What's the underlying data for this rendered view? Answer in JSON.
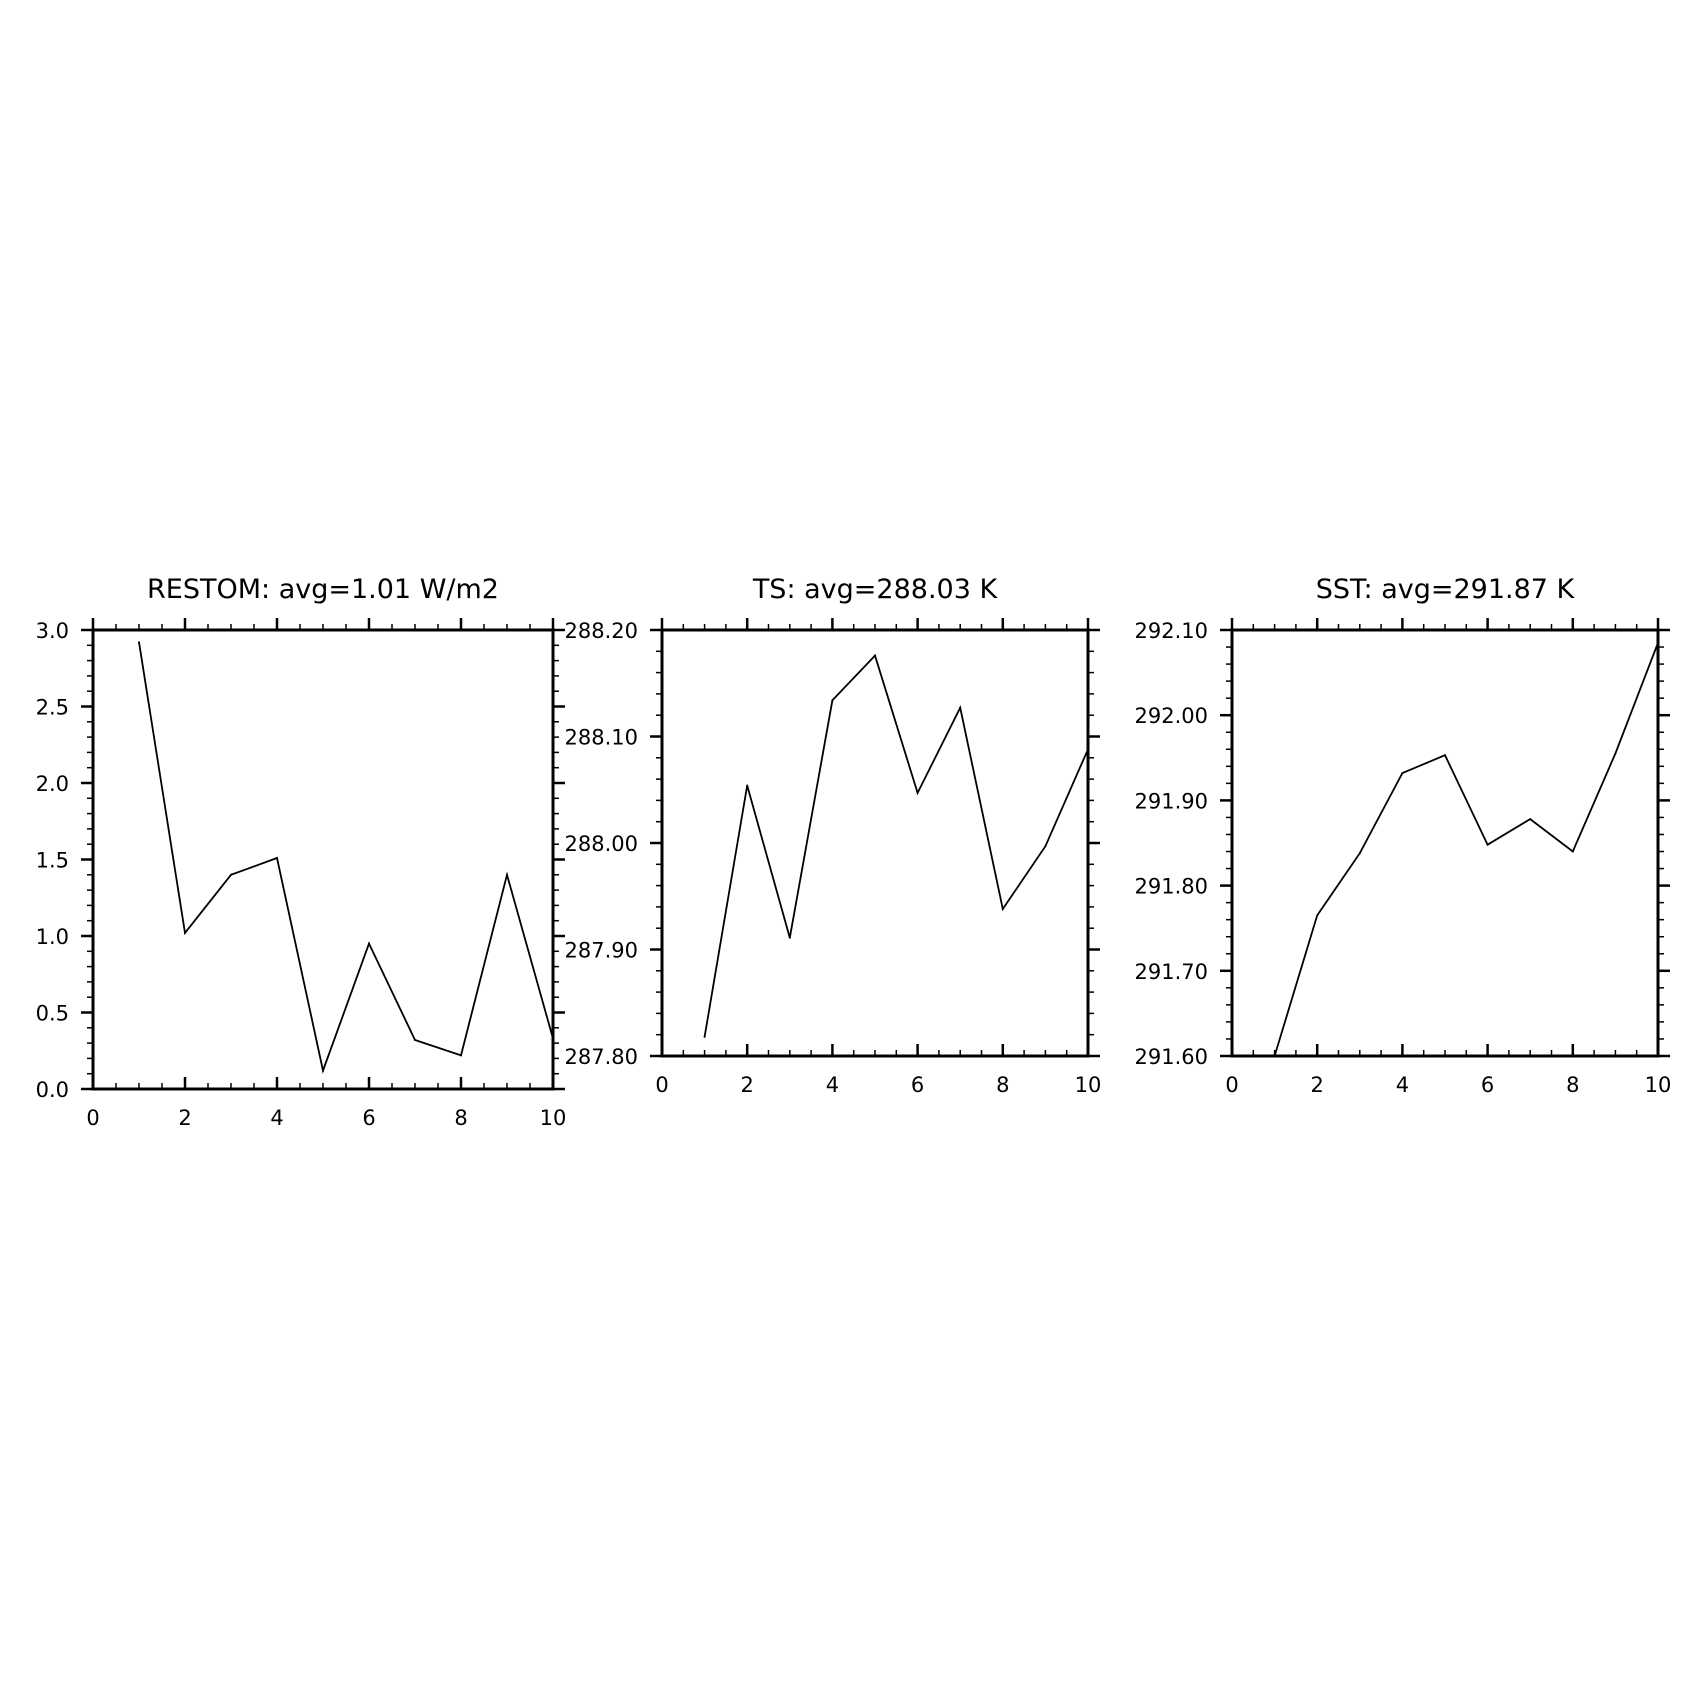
{
  "chart_data": [
    {
      "type": "line",
      "title": "RESTOM: avg=1.01 W/m2",
      "x": [
        1,
        2,
        3,
        4,
        5,
        6,
        7,
        8,
        9,
        10
      ],
      "values": [
        2.92,
        1.02,
        1.4,
        1.51,
        0.12,
        0.95,
        0.32,
        0.22,
        1.4,
        0.33
      ],
      "xlim": [
        0,
        10
      ],
      "ylim": [
        0,
        3
      ],
      "xticks": [
        0,
        2,
        4,
        6,
        8,
        10
      ],
      "yticks": [
        0.0,
        0.5,
        1.0,
        1.5,
        2.0,
        2.5,
        3.0
      ],
      "xtick_labels": [
        "0",
        "2",
        "4",
        "6",
        "8",
        "10"
      ],
      "ytick_labels": [
        "0.0",
        "0.5",
        "1.0",
        "1.5",
        "2.0",
        "2.5",
        "3.0"
      ],
      "grid": false
    },
    {
      "type": "line",
      "title": "TS: avg=288.03 K",
      "x": [
        1,
        2,
        3,
        4,
        5,
        6,
        7,
        8,
        9,
        10
      ],
      "values": [
        287.818,
        288.054,
        287.911,
        288.134,
        288.176,
        288.047,
        288.127,
        287.938,
        287.997,
        288.088
      ],
      "xlim": [
        0,
        10
      ],
      "ylim": [
        287.8,
        288.2
      ],
      "xticks": [
        0,
        2,
        4,
        6,
        8,
        10
      ],
      "yticks": [
        287.8,
        287.9,
        288.0,
        288.1,
        288.2
      ],
      "xtick_labels": [
        "0",
        "2",
        "4",
        "6",
        "8",
        "10"
      ],
      "ytick_labels": [
        "287.80",
        "287.90",
        "288.00",
        "288.10",
        "288.20"
      ],
      "grid": false
    },
    {
      "type": "line",
      "title": "SST: avg=291.87 K",
      "x": [
        1,
        2,
        3,
        4,
        5,
        6,
        7,
        8,
        9,
        10
      ],
      "values": [
        291.6,
        291.765,
        291.838,
        291.932,
        291.953,
        291.848,
        291.878,
        291.84,
        291.955,
        292.085
      ],
      "xlim": [
        0,
        10
      ],
      "ylim": [
        291.6,
        292.1
      ],
      "xticks": [
        0,
        2,
        4,
        6,
        8,
        10
      ],
      "yticks": [
        291.6,
        291.7,
        291.8,
        291.9,
        292.0,
        292.1
      ],
      "xtick_labels": [
        "0",
        "2",
        "4",
        "6",
        "8",
        "10"
      ],
      "ytick_labels": [
        "291.60",
        "291.70",
        "291.80",
        "291.90",
        "292.00",
        "292.10"
      ],
      "grid": false
    }
  ]
}
